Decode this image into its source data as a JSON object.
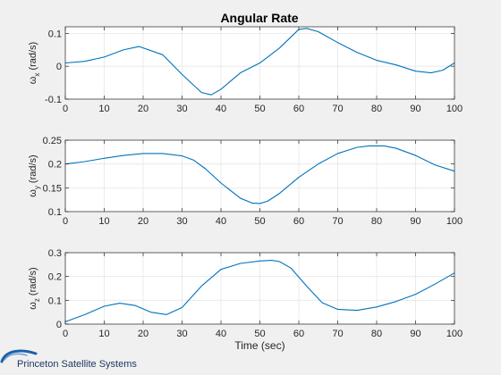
{
  "figure": {
    "title": "Angular Rate",
    "footer_text": "Princeton Satellite Systems"
  },
  "chart_data": [
    {
      "type": "line",
      "title": "Angular Rate",
      "ylabel_symbol": "ω",
      "ylabel_sub": "x",
      "ylabel_unit": "(rad/s)",
      "xlabel": "",
      "xlim": [
        0,
        100
      ],
      "ylim": [
        -0.1,
        0.12
      ],
      "xticks": [
        0,
        10,
        20,
        30,
        40,
        50,
        60,
        70,
        80,
        90,
        100
      ],
      "yticks": [
        -0.1,
        0,
        0.1
      ],
      "ytick_labels": [
        "-0.1",
        "0",
        "0.1"
      ],
      "grid": true,
      "series": [
        {
          "color": "#0072bd",
          "x": [
            0,
            5,
            10,
            15,
            19,
            25,
            30,
            35,
            37.5,
            40,
            45,
            50,
            55,
            60,
            62,
            65,
            70,
            75,
            80,
            85,
            90,
            94,
            97,
            100
          ],
          "y": [
            0.01,
            0.015,
            0.028,
            0.05,
            0.06,
            0.035,
            -0.025,
            -0.08,
            -0.087,
            -0.07,
            -0.02,
            0.01,
            0.055,
            0.112,
            0.115,
            0.105,
            0.072,
            0.042,
            0.018,
            0.004,
            -0.015,
            -0.02,
            -0.012,
            0.01
          ]
        }
      ]
    },
    {
      "type": "line",
      "ylabel_symbol": "ω",
      "ylabel_sub": "y",
      "ylabel_unit": "(rad/s)",
      "xlabel": "",
      "xlim": [
        0,
        100
      ],
      "ylim": [
        0.1,
        0.25
      ],
      "xticks": [
        0,
        10,
        20,
        30,
        40,
        50,
        60,
        70,
        80,
        90,
        100
      ],
      "yticks": [
        0.1,
        0.15,
        0.2,
        0.25
      ],
      "ytick_labels": [
        "0.1",
        "0.15",
        "0.2",
        "0.25"
      ],
      "grid": true,
      "series": [
        {
          "color": "#0072bd",
          "x": [
            0,
            5,
            10,
            15,
            20,
            25,
            30,
            33,
            36,
            40,
            45,
            48,
            50,
            52,
            55,
            60,
            65,
            70,
            75,
            78,
            82,
            85,
            90,
            95,
            100
          ],
          "y": [
            0.2,
            0.205,
            0.212,
            0.218,
            0.222,
            0.222,
            0.217,
            0.208,
            0.19,
            0.16,
            0.128,
            0.118,
            0.117,
            0.122,
            0.138,
            0.172,
            0.2,
            0.222,
            0.235,
            0.238,
            0.238,
            0.233,
            0.218,
            0.198,
            0.185
          ]
        }
      ]
    },
    {
      "type": "line",
      "ylabel_symbol": "ω",
      "ylabel_sub": "z",
      "ylabel_unit": "(rad/s)",
      "xlabel": "Time (sec)",
      "xlim": [
        0,
        100
      ],
      "ylim": [
        0,
        0.3
      ],
      "xticks": [
        0,
        10,
        20,
        30,
        40,
        50,
        60,
        70,
        80,
        90,
        100
      ],
      "yticks": [
        0,
        0.1,
        0.2,
        0.3
      ],
      "ytick_labels": [
        "0",
        "0.1",
        "0.2",
        "0.3"
      ],
      "grid": true,
      "series": [
        {
          "color": "#0072bd",
          "x": [
            0,
            5,
            10,
            14,
            18,
            22,
            26,
            30,
            35,
            40,
            45,
            50,
            53,
            55,
            58,
            62,
            66,
            70,
            75,
            80,
            85,
            90,
            95,
            100
          ],
          "y": [
            0.01,
            0.04,
            0.075,
            0.088,
            0.078,
            0.05,
            0.04,
            0.07,
            0.16,
            0.23,
            0.255,
            0.265,
            0.268,
            0.263,
            0.235,
            0.16,
            0.09,
            0.062,
            0.058,
            0.072,
            0.095,
            0.125,
            0.168,
            0.215
          ]
        }
      ]
    }
  ]
}
